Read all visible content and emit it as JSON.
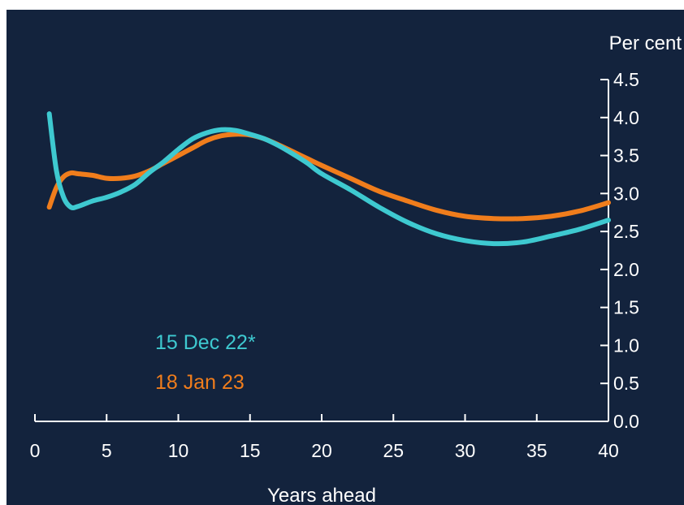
{
  "chart_data": {
    "type": "line",
    "title": "",
    "xlabel": "Years ahead",
    "ylabel": "Per cent",
    "xlim": [
      0,
      40
    ],
    "ylim": [
      0.0,
      4.5
    ],
    "x_ticks": [
      "0",
      "5",
      "10",
      "15",
      "20",
      "25",
      "30",
      "35",
      "40"
    ],
    "y_ticks": [
      "0.0",
      "0.5",
      "1.0",
      "1.5",
      "2.0",
      "2.5",
      "3.0",
      "3.5",
      "4.0",
      "4.5"
    ],
    "grid": false,
    "y_axis_position": "right",
    "legend_position": "bottom-left",
    "background_color": "#13233d",
    "series": [
      {
        "name": "15 Dec 22*",
        "color": "#3ec9d0",
        "x": [
          1,
          1.5,
          2,
          2.5,
          3,
          4,
          5,
          6,
          7,
          8,
          9,
          10,
          11,
          12,
          13,
          14,
          15,
          16,
          17,
          18,
          19,
          20,
          22,
          24,
          26,
          28,
          30,
          32,
          34,
          36,
          38,
          40
        ],
        "y": [
          4.05,
          3.3,
          2.95,
          2.82,
          2.83,
          2.9,
          2.95,
          3.02,
          3.12,
          3.28,
          3.42,
          3.58,
          3.72,
          3.8,
          3.84,
          3.83,
          3.78,
          3.72,
          3.63,
          3.52,
          3.4,
          3.26,
          3.05,
          2.82,
          2.62,
          2.47,
          2.38,
          2.34,
          2.36,
          2.44,
          2.53,
          2.65
        ]
      },
      {
        "name": "18 Jan 23",
        "color": "#f07d1c",
        "x": [
          1,
          1.5,
          2,
          2.5,
          3,
          4,
          5,
          6,
          7,
          8,
          9,
          10,
          11,
          12,
          13,
          14,
          15,
          16,
          17,
          18,
          19,
          20,
          22,
          24,
          26,
          28,
          30,
          32,
          34,
          36,
          38,
          40
        ],
        "y": [
          2.82,
          3.08,
          3.22,
          3.27,
          3.26,
          3.24,
          3.2,
          3.2,
          3.23,
          3.3,
          3.4,
          3.5,
          3.6,
          3.7,
          3.76,
          3.78,
          3.77,
          3.72,
          3.64,
          3.55,
          3.46,
          3.37,
          3.2,
          3.03,
          2.9,
          2.78,
          2.7,
          2.67,
          2.67,
          2.7,
          2.77,
          2.88
        ]
      }
    ]
  }
}
